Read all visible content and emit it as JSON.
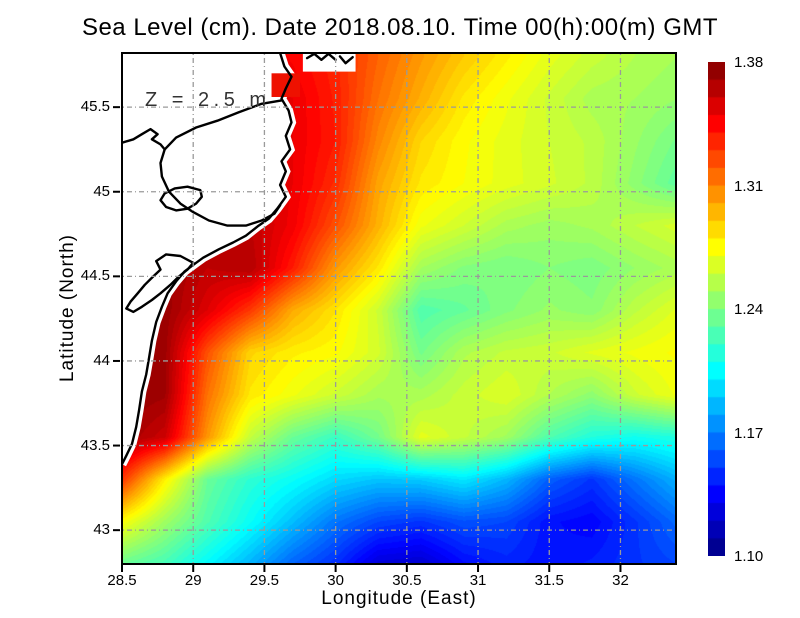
{
  "title": "Sea Level (cm). Date 2018.08.10. Time 00(h):00(m) GMT",
  "annotation": "Z = 2.5 m",
  "colors": {
    "background": "#ffffff",
    "land": "#ffffff",
    "coastline": "#000000",
    "gridline": "#9a9a9a",
    "frame": "#000000",
    "annotation_text": "#333333",
    "lagoon_cell_red": "#ee1100"
  },
  "axes": {
    "x": {
      "label": "Longitude (East)",
      "ticks": [
        {
          "label": "28.5",
          "value": 28.5
        },
        {
          "label": "29",
          "value": 29
        },
        {
          "label": "29.5",
          "value": 29.5
        },
        {
          "label": "30",
          "value": 30
        },
        {
          "label": "30.5",
          "value": 30.5
        },
        {
          "label": "31",
          "value": 31
        },
        {
          "label": "31.5",
          "value": 31.5
        },
        {
          "label": "32",
          "value": 32
        }
      ]
    },
    "y": {
      "label": "Latitude (North)",
      "ticks": [
        {
          "label": "45.5",
          "value": 45.5
        },
        {
          "label": "45",
          "value": 45
        },
        {
          "label": "44.5",
          "value": 44.5
        },
        {
          "label": "44",
          "value": 44
        },
        {
          "label": "43.5",
          "value": 43.5
        },
        {
          "label": "43",
          "value": 43
        }
      ]
    }
  },
  "colorbar": {
    "min": 1.1,
    "max": 1.38,
    "segments": 28,
    "ticks": [
      {
        "label": "1.38",
        "value": 1.38
      },
      {
        "label": "1.31",
        "value": 1.31
      },
      {
        "label": "1.24",
        "value": 1.24
      },
      {
        "label": "1.17",
        "value": 1.17
      },
      {
        "label": "1.10",
        "value": 1.1
      }
    ]
  },
  "chart_data": {
    "type": "heatmap",
    "title": "Sea Level (cm). Date 2018.08.10. Time 00(h):00(m) GMT",
    "xlabel": "Longitude (East)",
    "ylabel": "Latitude (North)",
    "annotation": "Z = 2.5 m",
    "colormap": "jet",
    "vmin": 1.1,
    "vmax": 1.38,
    "lon_range": [
      28.5,
      32.39
    ],
    "lat_range": [
      42.8,
      45.82
    ],
    "grid": {
      "lons": [
        28.5,
        28.8,
        29.1,
        29.4,
        29.7,
        30.0,
        30.3,
        30.6,
        30.9,
        31.2,
        31.5,
        31.8,
        32.1,
        32.4
      ],
      "lats": [
        45.8,
        45.55,
        45.3,
        45.05,
        44.8,
        44.55,
        44.3,
        44.05,
        43.8,
        43.55,
        43.3,
        43.05,
        42.8
      ],
      "values": [
        [
          1.36,
          1.36,
          1.358,
          1.352,
          1.345,
          1.335,
          1.318,
          1.303,
          1.29,
          1.279,
          1.268,
          1.26,
          1.254,
          1.25
        ],
        [
          1.36,
          1.36,
          1.358,
          1.354,
          1.35,
          1.337,
          1.314,
          1.297,
          1.281,
          1.271,
          1.261,
          1.252,
          1.25,
          1.246
        ],
        [
          1.362,
          1.362,
          1.36,
          1.356,
          1.35,
          1.338,
          1.308,
          1.286,
          1.275,
          1.268,
          1.262,
          1.257,
          1.247,
          1.237
        ],
        [
          1.364,
          1.364,
          1.362,
          1.357,
          1.35,
          1.333,
          1.3,
          1.281,
          1.274,
          1.268,
          1.263,
          1.257,
          1.244,
          1.231
        ],
        [
          1.368,
          1.368,
          1.366,
          1.362,
          1.348,
          1.323,
          1.296,
          1.271,
          1.262,
          1.252,
          1.248,
          1.251,
          1.258,
          1.264
        ],
        [
          1.374,
          1.372,
          1.362,
          1.366,
          1.338,
          1.303,
          1.281,
          1.25,
          1.241,
          1.238,
          1.242,
          1.239,
          1.246,
          1.252
        ],
        [
          1.376,
          1.373,
          1.354,
          1.33,
          1.298,
          1.282,
          1.261,
          1.227,
          1.233,
          1.241,
          1.247,
          1.243,
          1.257,
          1.267
        ],
        [
          1.376,
          1.372,
          1.323,
          1.287,
          1.279,
          1.275,
          1.263,
          1.237,
          1.253,
          1.259,
          1.261,
          1.267,
          1.271,
          1.275
        ],
        [
          1.375,
          1.371,
          1.314,
          1.281,
          1.271,
          1.261,
          1.251,
          1.252,
          1.26,
          1.266,
          1.254,
          1.244,
          1.261,
          1.271
        ],
        [
          1.371,
          1.359,
          1.304,
          1.259,
          1.234,
          1.221,
          1.237,
          1.268,
          1.259,
          1.249,
          1.227,
          1.214,
          1.209,
          1.214
        ],
        [
          1.331,
          1.279,
          1.234,
          1.217,
          1.207,
          1.195,
          1.189,
          1.191,
          1.199,
          1.185,
          1.161,
          1.149,
          1.167,
          1.184
        ],
        [
          1.274,
          1.249,
          1.227,
          1.207,
          1.187,
          1.167,
          1.154,
          1.149,
          1.157,
          1.154,
          1.139,
          1.135,
          1.149,
          1.164
        ],
        [
          1.234,
          1.224,
          1.204,
          1.184,
          1.162,
          1.147,
          1.124,
          1.121,
          1.137,
          1.144,
          1.139,
          1.143,
          1.149,
          1.154
        ]
      ]
    },
    "map_overlay": {
      "coast": [
        [
          29.61,
          45.82
        ],
        [
          29.64,
          45.74
        ],
        [
          29.69,
          45.68
        ],
        [
          29.65,
          45.61
        ],
        [
          29.62,
          45.55
        ],
        [
          29.67,
          45.48
        ],
        [
          29.69,
          45.41
        ],
        [
          29.65,
          45.33
        ],
        [
          29.68,
          45.25
        ],
        [
          29.62,
          45.18
        ],
        [
          29.65,
          45.12
        ],
        [
          29.61,
          45.04
        ],
        [
          29.65,
          44.97
        ],
        [
          29.59,
          44.9
        ],
        [
          29.53,
          44.84
        ],
        [
          29.46,
          44.8
        ],
        [
          29.37,
          44.74
        ],
        [
          29.28,
          44.7
        ],
        [
          29.18,
          44.66
        ],
        [
          29.07,
          44.61
        ],
        [
          29.02,
          44.58
        ],
        [
          28.94,
          44.53
        ],
        [
          28.88,
          44.47
        ],
        [
          28.82,
          44.4
        ],
        [
          28.78,
          44.32
        ],
        [
          28.74,
          44.23
        ],
        [
          28.71,
          44.12
        ],
        [
          28.69,
          44.02
        ],
        [
          28.67,
          43.92
        ],
        [
          28.64,
          43.82
        ],
        [
          28.62,
          43.71
        ],
        [
          28.6,
          43.61
        ],
        [
          28.57,
          43.51
        ],
        [
          28.53,
          43.44
        ],
        [
          28.5,
          43.39
        ]
      ],
      "delta_loop": [
        [
          29.62,
          45.54
        ],
        [
          29.48,
          45.52
        ],
        [
          29.32,
          45.47
        ],
        [
          29.17,
          45.42
        ],
        [
          29.02,
          45.38
        ],
        [
          28.88,
          45.32
        ],
        [
          28.8,
          45.25
        ],
        [
          28.77,
          45.17
        ],
        [
          28.78,
          45.09
        ],
        [
          28.83,
          45.0
        ],
        [
          28.91,
          44.93
        ],
        [
          29.0,
          44.88
        ],
        [
          29.11,
          44.83
        ],
        [
          29.24,
          44.8
        ],
        [
          29.37,
          44.8
        ],
        [
          29.48,
          44.83
        ],
        [
          29.57,
          44.87
        ],
        [
          29.61,
          44.92
        ]
      ],
      "river": [
        [
          28.5,
          45.29
        ],
        [
          28.58,
          45.31
        ],
        [
          28.64,
          45.34
        ],
        [
          28.7,
          45.37
        ],
        [
          28.75,
          45.34
        ],
        [
          28.71,
          45.31
        ],
        [
          28.77,
          45.28
        ],
        [
          28.8,
          45.25
        ]
      ],
      "lagoon_south": [
        [
          29.0,
          44.58
        ],
        [
          28.91,
          44.62
        ],
        [
          28.81,
          44.63
        ],
        [
          28.74,
          44.59
        ],
        [
          28.77,
          44.54
        ],
        [
          28.72,
          44.5
        ],
        [
          28.66,
          44.45
        ],
        [
          28.61,
          44.4
        ],
        [
          28.56,
          44.35
        ],
        [
          28.53,
          44.31
        ],
        [
          28.58,
          44.29
        ],
        [
          28.64,
          44.32
        ],
        [
          28.71,
          44.36
        ],
        [
          28.77,
          44.4
        ],
        [
          28.84,
          44.45
        ],
        [
          28.9,
          44.5
        ],
        [
          28.96,
          44.54
        ]
      ],
      "lagoon_small": [
        [
          29.05,
          45.01
        ],
        [
          28.96,
          45.03
        ],
        [
          28.87,
          45.02
        ],
        [
          28.8,
          44.99
        ],
        [
          28.77,
          44.95
        ],
        [
          28.81,
          44.91
        ],
        [
          28.88,
          44.89
        ],
        [
          28.96,
          44.9
        ],
        [
          29.02,
          44.93
        ],
        [
          29.06,
          44.97
        ]
      ],
      "islands": [
        [
          [
            29.8,
            45.79
          ],
          [
            29.85,
            45.815
          ],
          [
            29.9,
            45.78
          ],
          [
            29.95,
            45.815
          ],
          [
            30.0,
            45.78
          ]
        ],
        [
          [
            30.03,
            45.8
          ],
          [
            30.07,
            45.76
          ],
          [
            30.12,
            45.795
          ]
        ]
      ],
      "white_cells": [
        [
          29.77,
          45.82,
          30.14,
          45.71
        ]
      ],
      "red_cells": [
        [
          29.55,
          45.7,
          29.75,
          45.56
        ]
      ]
    }
  }
}
